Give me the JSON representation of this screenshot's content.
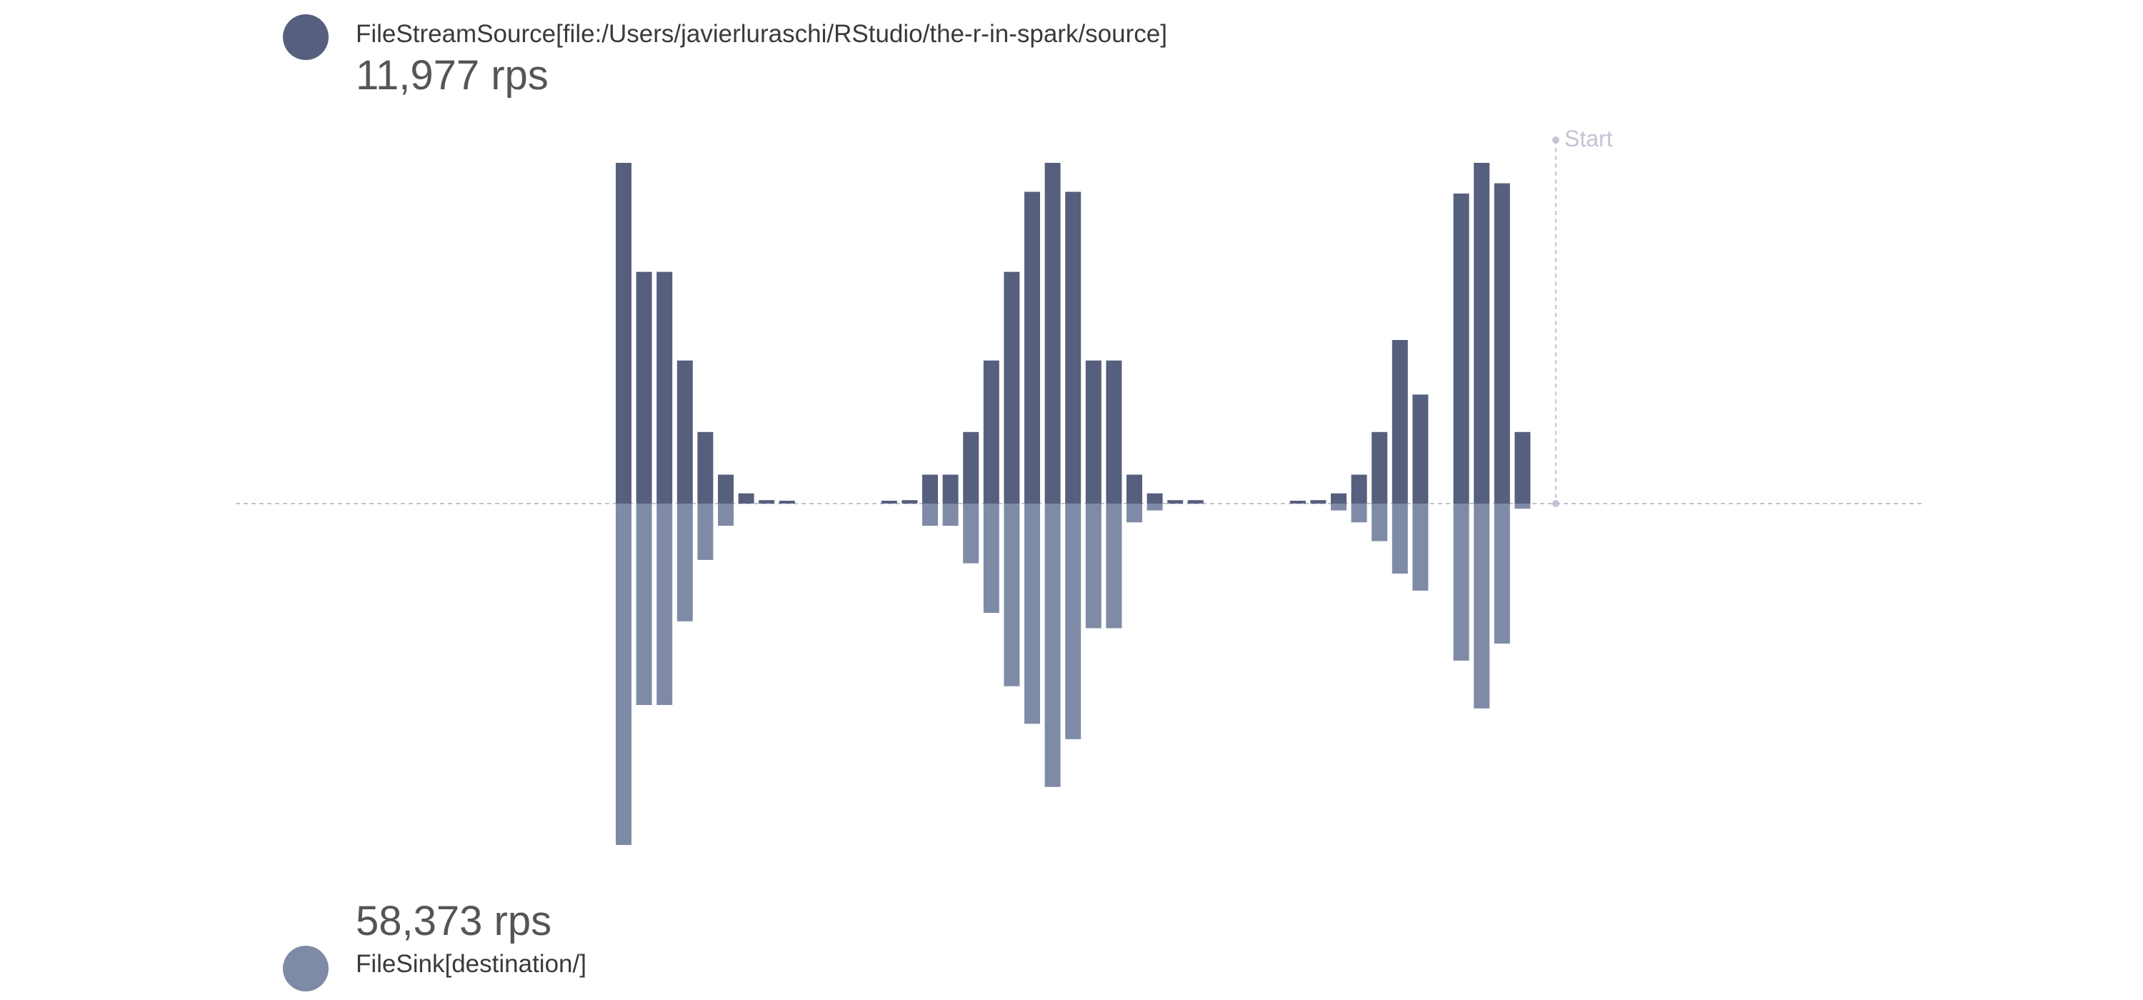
{
  "legend": {
    "source": {
      "name": "FileStreamSource[file:/Users/javierluraschi/RStudio/the-r-in-spark/source]",
      "rate": "11,977 rps",
      "color": "#565f7d"
    },
    "sink": {
      "name": "FileSink[destination/]",
      "rate": "58,373 rps",
      "color": "#7f8ba6"
    }
  },
  "marker": {
    "label": "Start",
    "color": "#c3c3d6"
  },
  "chart_data": {
    "type": "bar",
    "title": "",
    "xlabel": "",
    "ylabel": "",
    "grid": false,
    "series": [
      {
        "name": "FileStreamSource[file:/Users/javierluraschi/RStudio/the-r-in-spark/source]",
        "direction": "up",
        "color": "#565f7d",
        "values": [
          100,
          68,
          68,
          42,
          21,
          8.5,
          3,
          1,
          0.5,
          0,
          0,
          0,
          0,
          0.5,
          1,
          8.5,
          8.5,
          21,
          42,
          68,
          91.5,
          100,
          91.5,
          42,
          42,
          8.5,
          3,
          1,
          1,
          0,
          0,
          0,
          0,
          0.5,
          1,
          3,
          8.5,
          21,
          48,
          32,
          0,
          91,
          100,
          94,
          21
        ]
      },
      {
        "name": "FileSink[destination/]",
        "direction": "down",
        "color": "#7f8ba6",
        "values": [
          100,
          59,
          59,
          34.5,
          16.5,
          6.5,
          0,
          0,
          0,
          0,
          0,
          0,
          0,
          0,
          0,
          6.5,
          6.5,
          17.5,
          32,
          53.5,
          64.5,
          83,
          69,
          36.5,
          36.5,
          5.5,
          2,
          0,
          0,
          0,
          0,
          0,
          0,
          0,
          0,
          2,
          5.5,
          11,
          20.5,
          25.5,
          0,
          46,
          60,
          41,
          1.5
        ]
      }
    ]
  }
}
